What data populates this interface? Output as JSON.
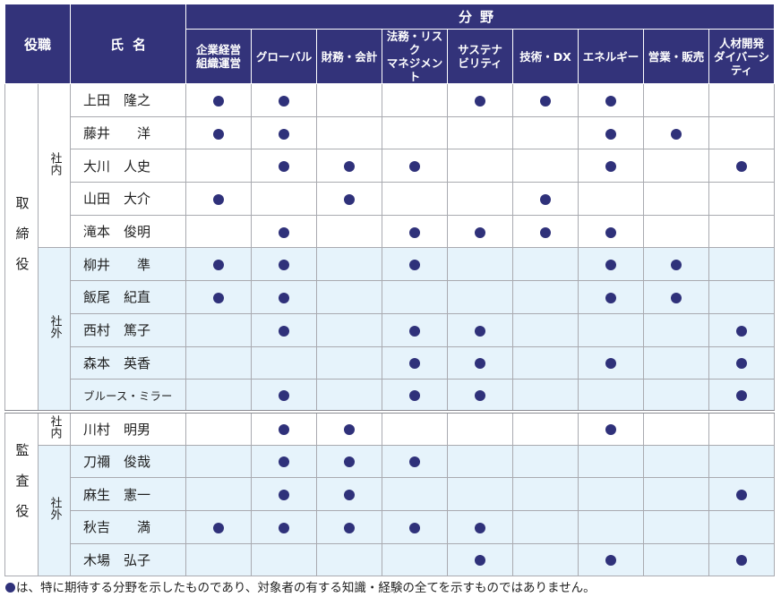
{
  "header": {
    "role": "役職",
    "name": "氏名",
    "field_group": "分野",
    "fields": [
      [
        "企業経営",
        "組織運営"
      ],
      [
        "グローバル"
      ],
      [
        "財務・会計"
      ],
      [
        "法務・リスク",
        "マネジメント"
      ],
      [
        "サステナ",
        "ビリティ"
      ],
      [
        "技術・DX"
      ],
      [
        "エネルギー"
      ],
      [
        "営業・販売"
      ],
      [
        "人材開発",
        "ダイバーシティ"
      ]
    ]
  },
  "sections": [
    {
      "role": "取締役",
      "groups": [
        {
          "label": "社内",
          "shade": false,
          "members": [
            {
              "name": "上田　隆之",
              "marks": [
                1,
                1,
                0,
                0,
                1,
                1,
                1,
                0,
                0
              ]
            },
            {
              "name": "藤井　　洋",
              "marks": [
                1,
                1,
                0,
                0,
                0,
                0,
                1,
                1,
                0
              ]
            },
            {
              "name": "大川　人史",
              "marks": [
                0,
                1,
                1,
                1,
                0,
                0,
                1,
                0,
                1
              ]
            },
            {
              "name": "山田　大介",
              "marks": [
                1,
                0,
                1,
                0,
                0,
                1,
                0,
                0,
                0
              ]
            },
            {
              "name": "滝本　俊明",
              "marks": [
                0,
                1,
                0,
                1,
                1,
                1,
                1,
                0,
                0
              ]
            }
          ]
        },
        {
          "label": "社外",
          "shade": true,
          "members": [
            {
              "name": "柳井　　準",
              "marks": [
                1,
                1,
                0,
                1,
                0,
                0,
                1,
                1,
                0
              ]
            },
            {
              "name": "飯尾　紀直",
              "marks": [
                1,
                1,
                0,
                0,
                0,
                0,
                1,
                1,
                0
              ]
            },
            {
              "name": "西村　篤子",
              "marks": [
                0,
                1,
                0,
                1,
                1,
                0,
                0,
                0,
                1
              ]
            },
            {
              "name": "森本　英香",
              "marks": [
                0,
                0,
                0,
                1,
                1,
                0,
                1,
                0,
                1
              ]
            },
            {
              "name": "ブルース・ミラー",
              "marks": [
                0,
                1,
                0,
                1,
                1,
                0,
                0,
                0,
                1
              ],
              "small": true
            }
          ]
        }
      ]
    },
    {
      "role": "監査役",
      "groups": [
        {
          "label": "社内",
          "shade": false,
          "members": [
            {
              "name": "川村　明男",
              "marks": [
                0,
                1,
                1,
                0,
                0,
                0,
                1,
                0,
                0
              ]
            }
          ]
        },
        {
          "label": "社外",
          "shade": true,
          "members": [
            {
              "name": "刀禰　俊哉",
              "marks": [
                0,
                1,
                1,
                1,
                0,
                0,
                0,
                0,
                0
              ]
            },
            {
              "name": "麻生　憲一",
              "marks": [
                0,
                1,
                1,
                0,
                0,
                0,
                0,
                0,
                1
              ]
            },
            {
              "name": "秋吉　　満",
              "marks": [
                1,
                1,
                1,
                1,
                1,
                0,
                0,
                0,
                0
              ]
            },
            {
              "name": "木場　弘子",
              "marks": [
                0,
                0,
                0,
                0,
                1,
                0,
                1,
                0,
                1
              ]
            }
          ]
        }
      ]
    }
  ],
  "note": "は、特に期待する分野を示したものであり、対象者の有する知識・経験の全てを示すものではありません。",
  "colors": {
    "header_bg": "#33337a",
    "dot": "#2f317a",
    "shade": "#e6f3fb"
  }
}
